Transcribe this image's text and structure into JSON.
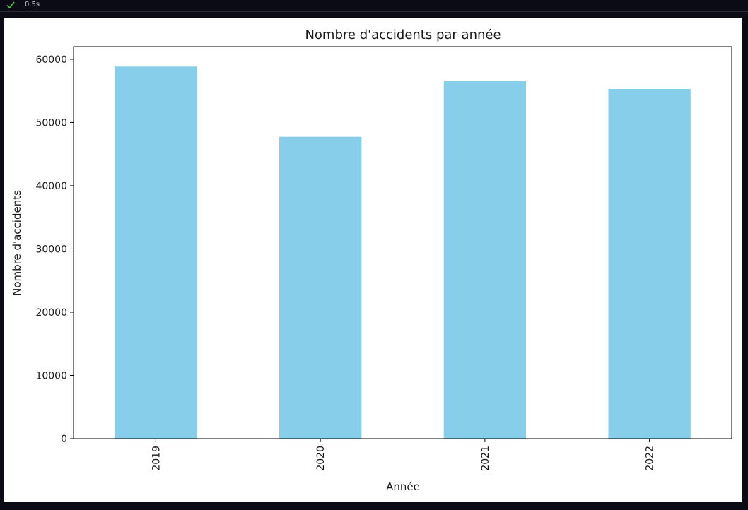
{
  "cell": {
    "status_icon": "check-icon",
    "status_color": "#4ec04e",
    "exec_time": "0.5s"
  },
  "chart_data": {
    "type": "bar",
    "title": "Nombre d'accidents par année",
    "xlabel": "Année",
    "ylabel": "Nombre d'accidents",
    "categories": [
      "2019",
      "2020",
      "2021",
      "2022"
    ],
    "values": [
      58840,
      47740,
      56520,
      55300
    ],
    "ylim": [
      0,
      62000
    ],
    "yticks": [
      0,
      10000,
      20000,
      30000,
      40000,
      50000,
      60000
    ],
    "ytick_labels": [
      "0",
      "10000",
      "20000",
      "30000",
      "40000",
      "50000",
      "60000"
    ],
    "bar_color": "#87ceeb",
    "grid": false,
    "legend": "none"
  }
}
